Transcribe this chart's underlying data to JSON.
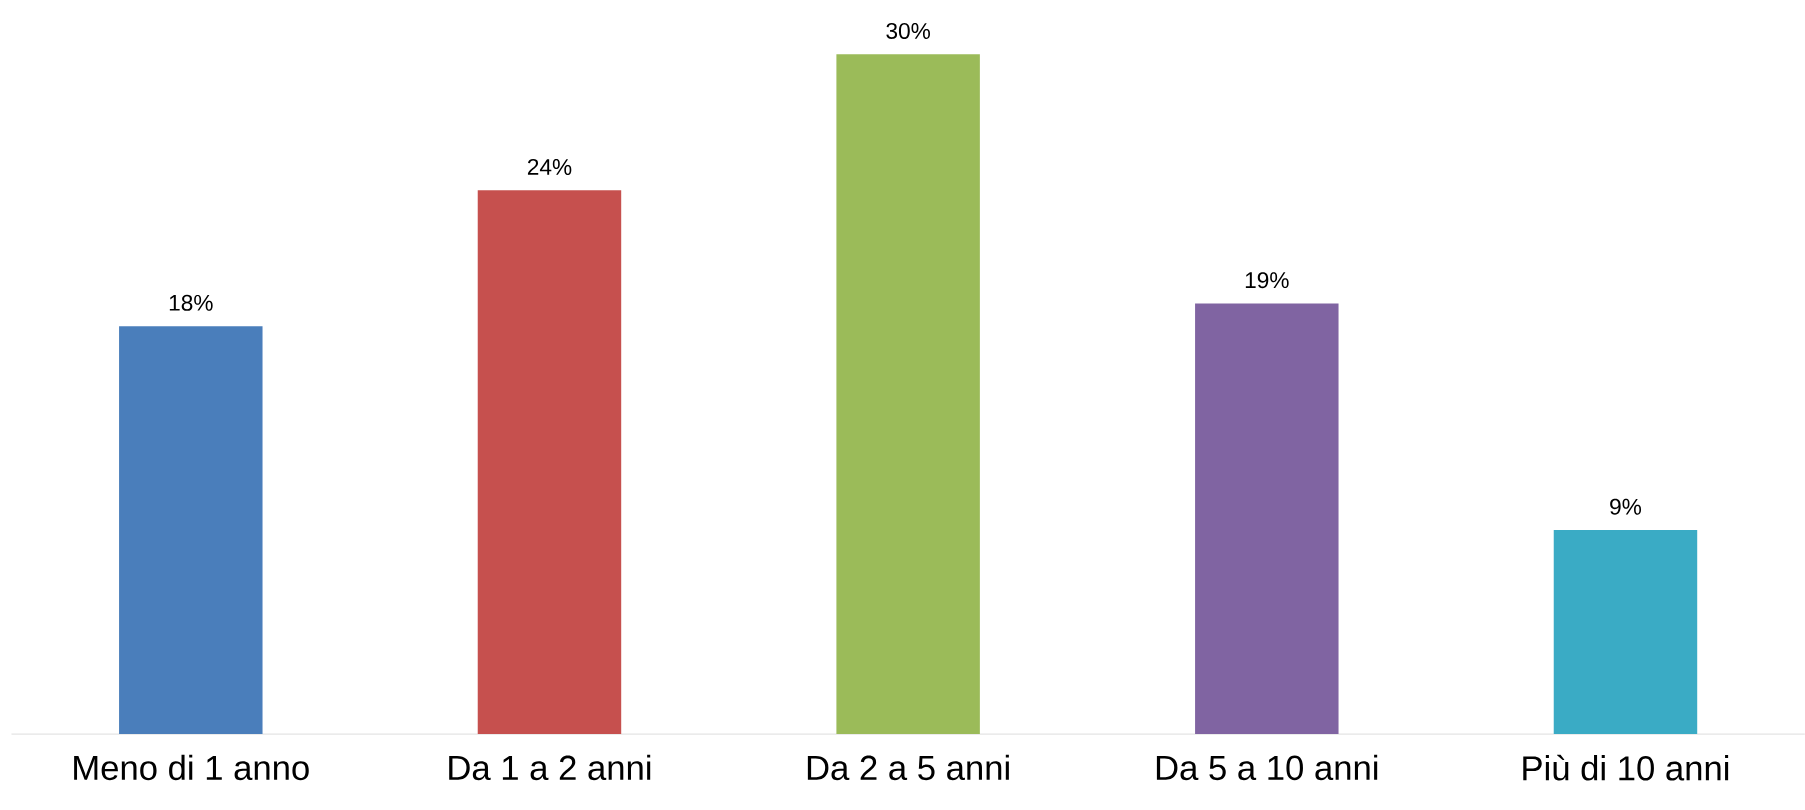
{
  "chart_data": {
    "type": "bar",
    "categories": [
      "Meno di 1 anno",
      "Da 1 a 2 anni",
      "Da 2 a 5 anni",
      "Da 5 a 10 anni",
      "Più di 10 anni"
    ],
    "values": [
      18,
      24,
      30,
      19,
      9
    ],
    "colors": [
      "#4a7ebb",
      "#c6504e",
      "#9bbb59",
      "#8064a2",
      "#3aabc5"
    ],
    "value_labels": [
      "18%",
      "24%",
      "30%",
      "19%",
      "9%"
    ]
  }
}
